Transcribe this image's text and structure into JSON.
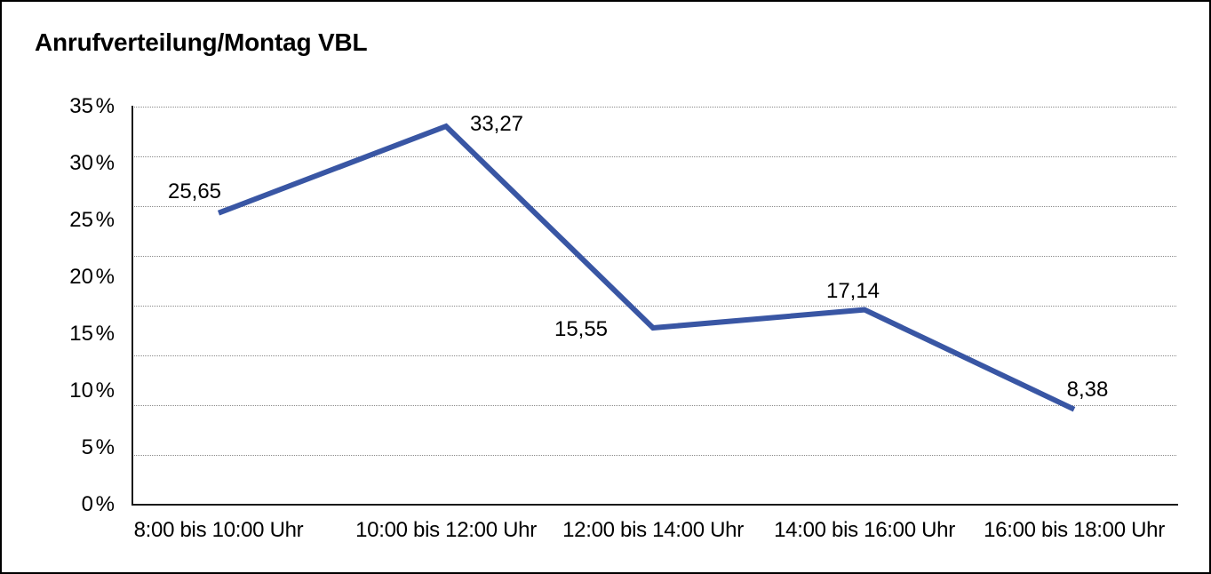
{
  "chart_data": {
    "type": "line",
    "title": "Anrufverteilung/Montag VBL",
    "categories": [
      "8:00 bis 10:00 Uhr",
      "10:00 bis 12:00 Uhr",
      "12:00 bis 14:00 Uhr",
      "14:00 bis 16:00 Uhr",
      "16:00 bis 18:00 Uhr"
    ],
    "values": [
      25.65,
      33.27,
      15.55,
      17.14,
      8.38
    ],
    "value_labels": [
      "25,65",
      "33,27",
      "15,55",
      "17,14",
      "8,38"
    ],
    "unit": "%",
    "xlabel": "",
    "ylabel": "",
    "ylim": [
      0,
      35
    ],
    "y_tick_values": [
      35,
      30,
      25,
      20,
      15,
      10,
      5,
      0
    ],
    "y_tick_labels": [
      "35 %",
      "30 %",
      "25 %",
      "20 %",
      "15 %",
      "10 %",
      "5 %",
      "0 %"
    ],
    "grid": "horizontal dotted",
    "legend_position": "none",
    "line_color": "#3956a4"
  },
  "colors": {
    "line": "#3956a4",
    "gridline": "#8a8a8a",
    "axis": "#1a1a1a",
    "text": "#000000",
    "background": "#ffffff",
    "frame_border": "#000000"
  }
}
